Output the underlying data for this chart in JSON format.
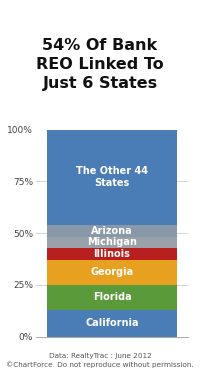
{
  "title": "54% Of Bank\nREO Linked To\nJust 6 States",
  "segments": [
    {
      "label": "California",
      "value": 13,
      "color": "#4a7db5"
    },
    {
      "label": "Florida",
      "value": 12,
      "color": "#5a9a3a"
    },
    {
      "label": "Georgia",
      "value": 12,
      "color": "#e8a020"
    },
    {
      "label": "Illinois",
      "value": 6,
      "color": "#b82020"
    },
    {
      "label": "Michigan",
      "value": 5,
      "color": "#9aa0a8"
    },
    {
      "label": "Arizona",
      "value": 6,
      "color": "#8898a8"
    },
    {
      "label": "The Other 44\nStates",
      "value": 46,
      "color": "#4a7db5"
    }
  ],
  "yticks": [
    0,
    25,
    50,
    75,
    100
  ],
  "ytick_labels": [
    "0%",
    "25%",
    "50%",
    "75%",
    "100%"
  ],
  "footer_line1": "Data: RealtyTrac : June 2012",
  "footer_line2": "©ChartForce  Do not reproduce without permission.",
  "background_color": "#ffffff",
  "label_color": "#ffffff",
  "title_color": "#111111",
  "footer_color": "#555555",
  "grid_color": "#cccccc",
  "label_fontsize": 7.0,
  "title_fontsize": 11.5,
  "footer_fontsize": 5.2,
  "ytick_fontsize": 6.5
}
